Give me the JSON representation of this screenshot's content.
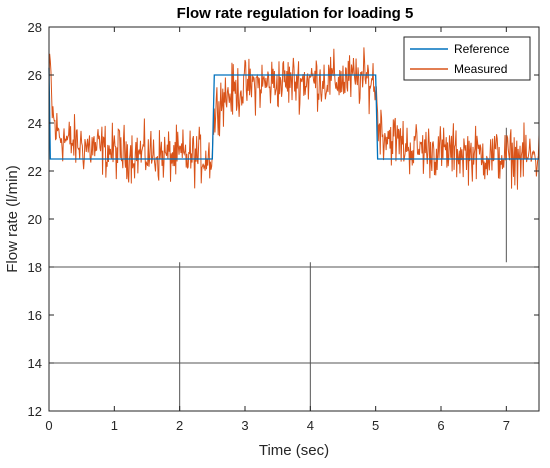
{
  "chart_data": {
    "type": "line",
    "title": "Flow rate regulation for loading 5",
    "xlabel": "Time (sec)",
    "ylabel": "Flow rate (l/min)",
    "xlim": [
      0,
      7.5
    ],
    "ylim": [
      12,
      28
    ],
    "xticks": [
      0,
      1,
      2,
      3,
      4,
      5,
      6,
      7
    ],
    "yticks": [
      12,
      14,
      16,
      18,
      20,
      22,
      24,
      26,
      28
    ],
    "grid": false,
    "legend_position": "top-right",
    "series": [
      {
        "name": "Reference",
        "color": "#0072BD",
        "x": [
          0,
          0.02,
          2.5,
          2.53,
          5.0,
          5.03,
          7.5
        ],
        "y": [
          26.3,
          22.5,
          22.5,
          26.0,
          26.0,
          22.5,
          22.5
        ]
      },
      {
        "name": "Measured",
        "color": "#D95319",
        "noise_amplitude": 1.1,
        "x": [
          0,
          0.02,
          0.05,
          0.1,
          0.3,
          0.6,
          1.0,
          1.5,
          2.0,
          2.45,
          2.5,
          2.52,
          2.6,
          3.0,
          3.5,
          4.0,
          4.5,
          4.95,
          5.0,
          5.03,
          5.1,
          5.5,
          6.0,
          6.5,
          7.0,
          7.5
        ],
        "y": [
          25.6,
          26.3,
          24.5,
          23.7,
          23.2,
          23.0,
          22.8,
          22.7,
          22.6,
          22.6,
          22.7,
          24.0,
          25.0,
          25.5,
          25.7,
          25.8,
          25.8,
          25.8,
          25.6,
          24.2,
          23.6,
          23.0,
          22.8,
          22.7,
          22.6,
          22.6
        ]
      }
    ],
    "annotation_lines": [
      {
        "x1": 0,
        "y1": 18,
        "x2": 7.5,
        "y2": 18
      },
      {
        "x1": 0,
        "y1": 14,
        "x2": 7.5,
        "y2": 14
      },
      {
        "x1": 2,
        "y1": 12,
        "x2": 2,
        "y2": 18.2
      },
      {
        "x1": 4,
        "y1": 12,
        "x2": 4,
        "y2": 18.2
      },
      {
        "x1": 7,
        "y1": 18.2,
        "x2": 7,
        "y2": 23.8
      }
    ]
  }
}
